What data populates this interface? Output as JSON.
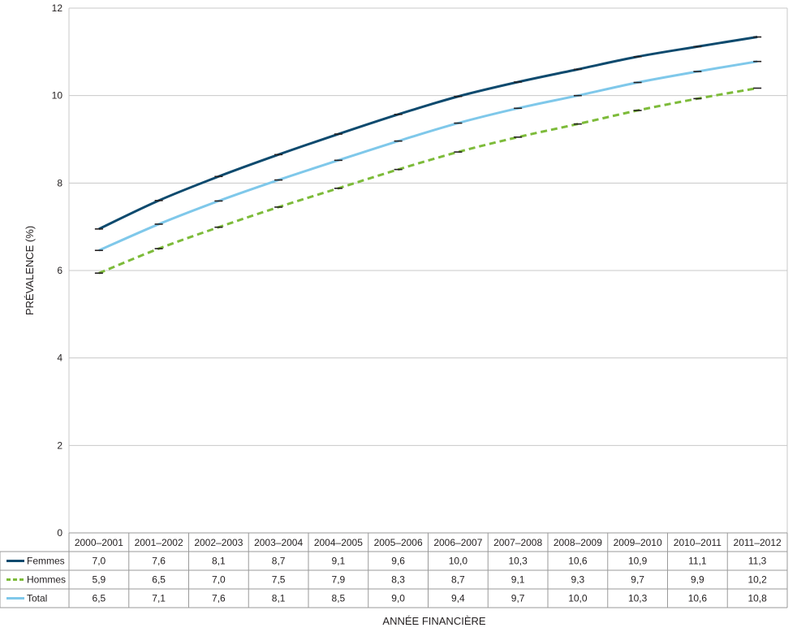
{
  "chart_data": {
    "type": "line",
    "ylabel": "PRÉVALENCE (%)",
    "xlabel": "ANNÉE FINANCIÈRE",
    "ylim": [
      0,
      12
    ],
    "yticks": [
      "0",
      "2",
      "4",
      "6",
      "8",
      "10",
      "12"
    ],
    "grid": true,
    "legend": "data-table-left",
    "categories": [
      "2000–2001",
      "2001–2002",
      "2002–2003",
      "2003–2004",
      "2004–2005",
      "2005–2006",
      "2006–2007",
      "2007–2008",
      "2008–2009",
      "2009–2010",
      "2010–2011",
      "2011–2012"
    ],
    "series": [
      {
        "name": "Femmes",
        "color": "#0d4a6e",
        "dash": "solid",
        "values": [
          6.95,
          7.6,
          8.15,
          8.65,
          9.12,
          9.57,
          9.98,
          10.31,
          10.6,
          10.89,
          11.12,
          11.34
        ],
        "labels": [
          "7,0",
          "7,6",
          "8,1",
          "8,7",
          "9,1",
          "9,6",
          "10,0",
          "10,3",
          "10,6",
          "10,9",
          "11,1",
          "11,3"
        ]
      },
      {
        "name": "Hommes",
        "color": "#7dbb3a",
        "dash": "dashed",
        "values": [
          5.94,
          6.5,
          6.99,
          7.45,
          7.88,
          8.31,
          8.71,
          9.05,
          9.35,
          9.66,
          9.93,
          10.17
        ],
        "labels": [
          "5,9",
          "6,5",
          "7,0",
          "7,5",
          "7,9",
          "8,3",
          "8,7",
          "9,1",
          "9,3",
          "9,7",
          "9,9",
          "10,2"
        ]
      },
      {
        "name": "Total",
        "color": "#7fc8ea",
        "dash": "solid",
        "values": [
          6.46,
          7.06,
          7.59,
          8.07,
          8.52,
          8.96,
          9.37,
          9.71,
          10.0,
          10.3,
          10.55,
          10.78
        ],
        "labels": [
          "6,5",
          "7,1",
          "7,6",
          "8,1",
          "8,5",
          "9,0",
          "9,4",
          "9,7",
          "10,0",
          "10,3",
          "10,6",
          "10,8"
        ]
      }
    ]
  }
}
